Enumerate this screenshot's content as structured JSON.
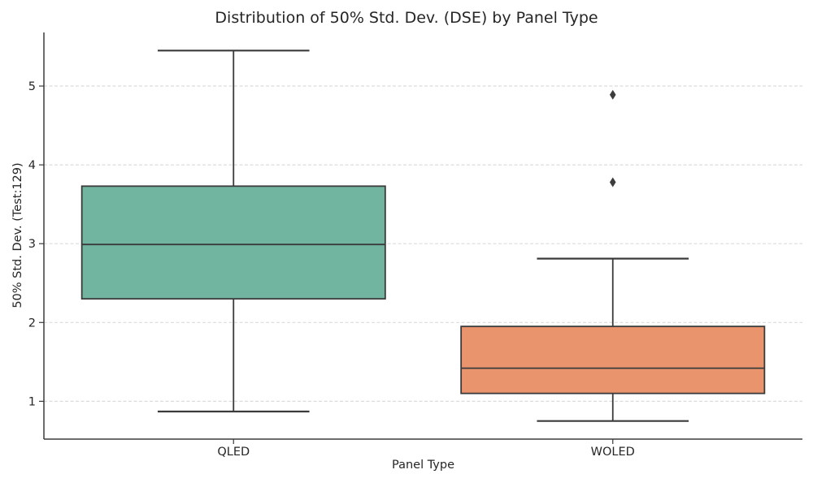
{
  "chart_data": {
    "type": "box",
    "title": "Distribution of 50% Std. Dev. (DSE) by Panel Type",
    "xlabel": "Panel Type",
    "ylabel": "50% Std. Dev. (Test:129)",
    "categories": [
      "QLED",
      "WOLED"
    ],
    "yticks": [
      1,
      2,
      3,
      4,
      5
    ],
    "ylim": [
      0.52,
      5.68
    ],
    "grid": {
      "axis": "y",
      "style": "dashed",
      "color": "#dcdcdc"
    },
    "legend": "none",
    "series": [
      {
        "name": "QLED",
        "box_color": "#71b5a1",
        "whisker_low": 0.87,
        "q1": 2.3,
        "median": 2.99,
        "q3": 3.73,
        "whisker_high": 5.45,
        "outliers": []
      },
      {
        "name": "WOLED",
        "box_color": "#ea946e",
        "whisker_low": 0.75,
        "q1": 1.1,
        "median": 1.42,
        "q3": 1.95,
        "whisker_high": 2.81,
        "outliers": [
          3.78,
          4.89
        ]
      }
    ],
    "edge_color": "#3b3b3b",
    "outlier_color": "#3d3d3d",
    "background": "#ffffff"
  }
}
